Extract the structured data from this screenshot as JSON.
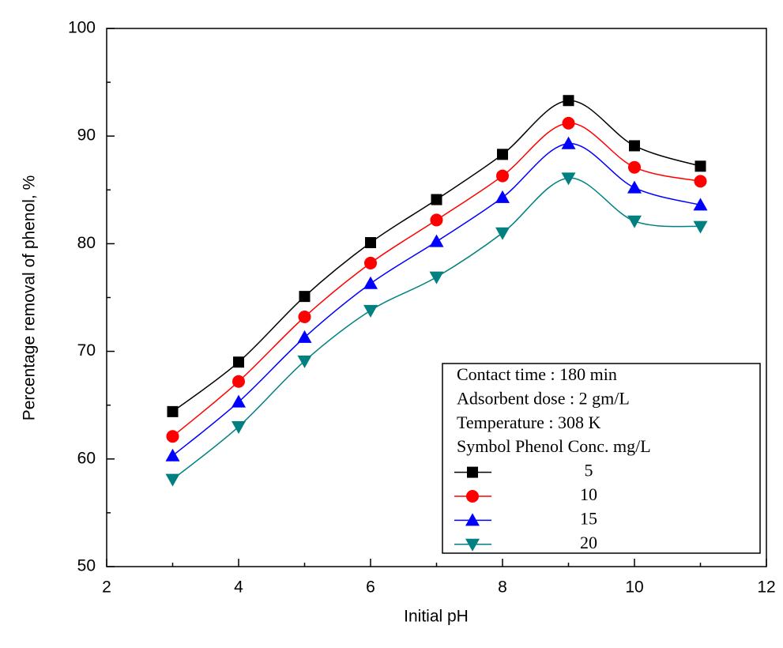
{
  "chart_data": {
    "type": "line",
    "xlabel": "Initial pH",
    "ylabel": "Percentage removal of phenol, %",
    "x": [
      3,
      4,
      5,
      6,
      7,
      8,
      9,
      10,
      11
    ],
    "series": [
      {
        "name": "5",
        "color": "#000000",
        "marker": "square",
        "values": [
          64.4,
          69.0,
          75.1,
          80.1,
          84.1,
          88.3,
          93.3,
          89.1,
          87.2
        ]
      },
      {
        "name": "10",
        "color": "#ff0000",
        "marker": "circle",
        "values": [
          62.1,
          67.2,
          73.2,
          78.2,
          82.2,
          86.3,
          91.2,
          87.1,
          85.8
        ]
      },
      {
        "name": "15",
        "color": "#0000ff",
        "marker": "triangle-up",
        "values": [
          60.3,
          65.3,
          71.3,
          76.3,
          80.2,
          84.3,
          89.3,
          85.2,
          83.6
        ]
      },
      {
        "name": "20",
        "color": "#008080",
        "marker": "triangle-down",
        "values": [
          58.1,
          63.0,
          69.1,
          73.8,
          76.9,
          81.0,
          86.1,
          82.1,
          81.6
        ]
      }
    ],
    "xlim": [
      2,
      12
    ],
    "xticks": [
      2,
      4,
      6,
      8,
      10,
      12
    ],
    "xminor": [
      3,
      5,
      7,
      9,
      11
    ],
    "ylim": [
      50,
      100
    ],
    "yticks": [
      50,
      60,
      70,
      80,
      90,
      100
    ],
    "yminor": [
      55,
      65,
      75,
      85,
      95
    ],
    "annotations": [
      "Contact time : 180 min",
      "Adsorbent dose : 2 gm/L",
      "Temperature : 308 K",
      "Symbol Phenol Conc. mg/L"
    ],
    "legend": "lower right"
  }
}
